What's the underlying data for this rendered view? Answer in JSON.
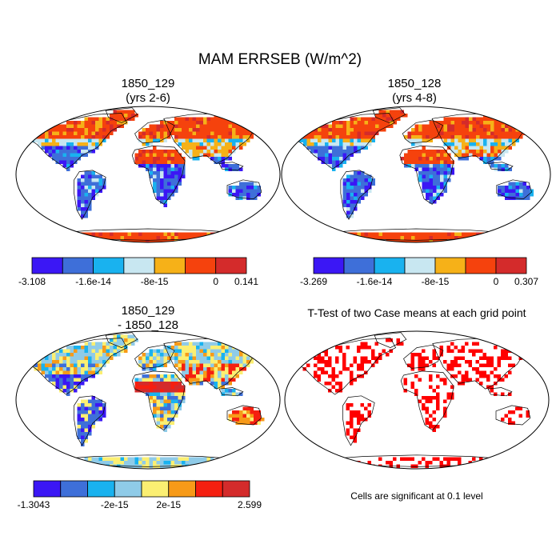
{
  "title": "MAM ERRSEB (W/m^2)",
  "panels": [
    {
      "id": "case1",
      "title_line1": "1850_129",
      "title_line2": "(yrs 2-6)",
      "colorbar": {
        "colors": [
          "#3b17f5",
          "#3e6fd9",
          "#19b2ef",
          "#c8e7f1",
          "#f6b118",
          "#f5420d",
          "#d42b2b"
        ],
        "labels": [
          "-3.108",
          "-1.6e-14",
          "-8e-15",
          "0",
          "0.141"
        ]
      }
    },
    {
      "id": "case2",
      "title_line1": "1850_128",
      "title_line2": "(yrs 4-8)",
      "colorbar": {
        "colors": [
          "#3b17f5",
          "#3e6fd9",
          "#19b2ef",
          "#c8e7f1",
          "#f6b118",
          "#f5420d",
          "#d42b2b"
        ],
        "labels": [
          "-3.269",
          "-1.6e-14",
          "-8e-15",
          "0",
          "0.307"
        ]
      }
    },
    {
      "id": "difference",
      "title_line1": "1850_129",
      "title_line2": "- 1850_128",
      "colorbar": {
        "colors": [
          "#3b17f5",
          "#3e6fd9",
          "#19b2ef",
          "#8fcbe8",
          "#fbef72",
          "#f79a18",
          "#f51f10",
          "#d42b2b"
        ],
        "labels": [
          "-1.3043",
          "-2e-15",
          "2e-15",
          "2.599"
        ]
      }
    },
    {
      "id": "ttest",
      "title_line1": "T-Test of two Case means at each grid point",
      "note": "Cells are significant at 0.1 level",
      "significant_color": "#ff0000"
    }
  ]
}
